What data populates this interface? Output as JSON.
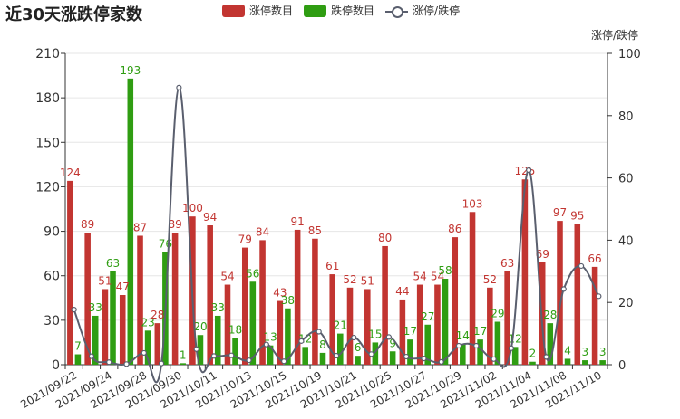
{
  "title": "近30天涨跌停家数",
  "legend": {
    "items": [
      {
        "label": "涨停数目",
        "color": "#c23531"
      },
      {
        "label": "跌停数目",
        "color": "#2f9d12"
      },
      {
        "label": "涨停/跌停",
        "color": "#5a5f6e"
      }
    ]
  },
  "chart_data": {
    "type": "bar",
    "title": "近30天涨跌停家数",
    "categories": [
      "2021/09/22",
      "2021/09/23",
      "2021/09/24",
      "2021/09/27",
      "2021/09/28",
      "2021/09/29",
      "2021/09/30",
      "2021/10/08",
      "2021/10/11",
      "2021/10/12",
      "2021/10/13",
      "2021/10/14",
      "2021/10/15",
      "2021/10/18",
      "2021/10/19",
      "2021/10/20",
      "2021/10/21",
      "2021/10/22",
      "2021/10/25",
      "2021/10/26",
      "2021/10/27",
      "2021/10/28",
      "2021/10/29",
      "2021/11/01",
      "2021/11/02",
      "2021/11/03",
      "2021/11/04",
      "2021/11/05",
      "2021/11/08",
      "2021/11/09",
      "2021/11/10"
    ],
    "tick_labels_shown": [
      "2021/09/22",
      "2021/09/24",
      "2021/09/28",
      "2021/09/30",
      "2021/10/11",
      "2021/10/13",
      "2021/10/15",
      "2021/10/19",
      "2021/10/21",
      "2021/10/25",
      "2021/10/27",
      "2021/10/29",
      "2021/11/02",
      "2021/11/04",
      "2021/11/08",
      "2021/11/10"
    ],
    "series": [
      {
        "name": "涨停数目",
        "type": "bar",
        "color": "#c23531",
        "values": [
          124,
          89,
          51,
          47,
          87,
          28,
          89,
          100,
          94,
          54,
          79,
          84,
          43,
          91,
          85,
          61,
          52,
          51,
          80,
          44,
          54,
          54,
          86,
          103,
          52,
          63,
          125,
          69,
          97,
          95,
          66
        ]
      },
      {
        "name": "跌停数目",
        "type": "bar",
        "color": "#2f9d12",
        "values": [
          7,
          33,
          63,
          193,
          23,
          76,
          1,
          20,
          33,
          18,
          56,
          13,
          38,
          12,
          8,
          21,
          6,
          15,
          9,
          17,
          27,
          58,
          14,
          17,
          29,
          12,
          2,
          28,
          4,
          3,
          3
        ]
      },
      {
        "name": "涨停/跌停",
        "type": "line",
        "axis": "right",
        "color": "#5a5f6e",
        "values": [
          17.7,
          2.7,
          0.8,
          0.2,
          3.8,
          0.4,
          89,
          5,
          2.8,
          3,
          1.4,
          6.5,
          1.1,
          7.6,
          10.6,
          2.9,
          8.7,
          3.4,
          8.9,
          2.6,
          2,
          0.9,
          6.1,
          6.1,
          1.8,
          5.3,
          62.5,
          2.5,
          24.3,
          31.7,
          22
        ]
      }
    ],
    "y_left": {
      "min": 0,
      "max": 210,
      "ticks": [
        0,
        30,
        60,
        90,
        120,
        150,
        180,
        210
      ]
    },
    "y_right": {
      "name": "涨停/跌停",
      "min": 0,
      "max": 100,
      "ticks": [
        0,
        20,
        40,
        60,
        80,
        100
      ]
    },
    "legend_position": "top-center",
    "grid": true
  }
}
